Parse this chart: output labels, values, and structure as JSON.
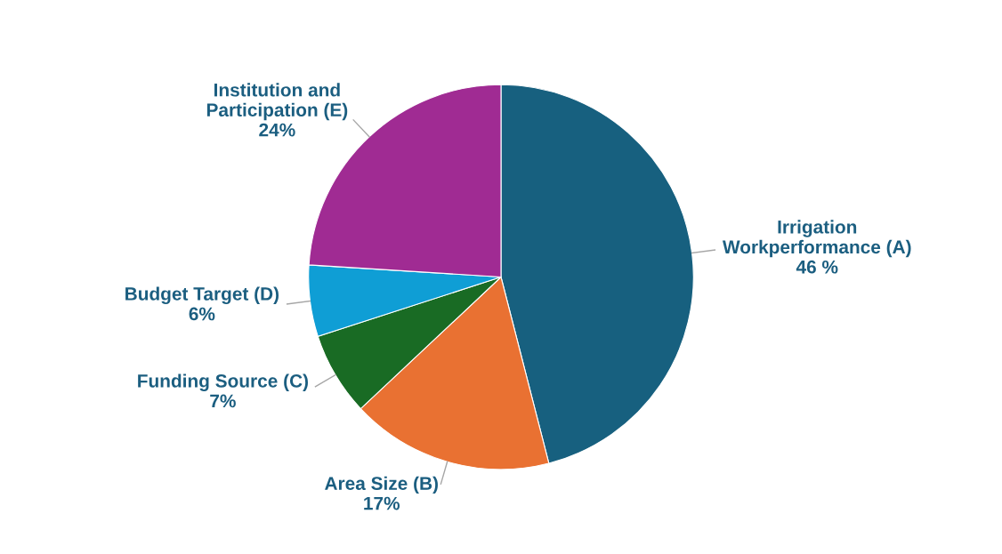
{
  "chart_data": {
    "type": "pie",
    "categories": [
      "Irrigation\nWorkperformance (A)",
      "Area Size (B)",
      "Funding Source (C)",
      "Budget Target (D)",
      "Institution and\nParticipation (E)"
    ],
    "values": [
      46,
      17,
      7,
      6,
      24
    ],
    "colors": [
      "#17607f",
      "#e97132",
      "#196b24",
      "#0f9ed5",
      "#a02b93"
    ],
    "value_labels": [
      "46 %",
      "17%",
      "7%",
      "6%",
      "24%"
    ],
    "legend": false
  }
}
